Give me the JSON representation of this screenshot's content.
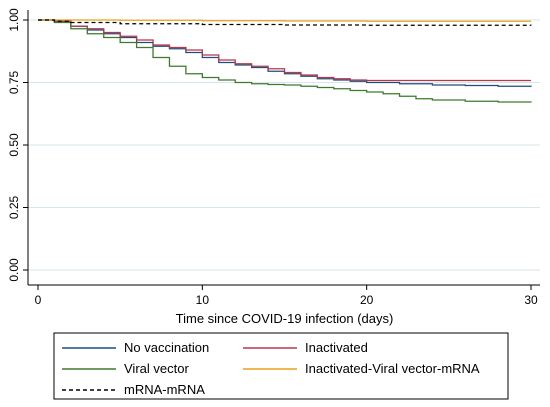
{
  "chart_data": {
    "type": "line",
    "step": true,
    "title": "",
    "xlabel": "Time since COVID-19 infection (days)",
    "ylabel": "",
    "xlim": [
      0,
      30
    ],
    "ylim": [
      0,
      1
    ],
    "x_ticks": [
      0,
      10,
      20,
      30
    ],
    "x_tick_labels": [
      "0",
      "10",
      "20",
      "30"
    ],
    "y_ticks": [
      0,
      0.25,
      0.5,
      0.75,
      1
    ],
    "y_tick_labels": [
      "0.00",
      "0.25",
      "0.50",
      "0.75",
      "1.00"
    ],
    "grid": "horizontal",
    "legend_position": "bottom",
    "series": [
      {
        "name": "No vaccination",
        "color": "#1f4e79",
        "dash": "solid",
        "points": [
          [
            0,
            1.0
          ],
          [
            1,
            0.995
          ],
          [
            2,
            0.975
          ],
          [
            3,
            0.96
          ],
          [
            4,
            0.945
          ],
          [
            5,
            0.93
          ],
          [
            6,
            0.91
          ],
          [
            7,
            0.895
          ],
          [
            8,
            0.885
          ],
          [
            9,
            0.87
          ],
          [
            10,
            0.85
          ],
          [
            11,
            0.83
          ],
          [
            12,
            0.82
          ],
          [
            13,
            0.81
          ],
          [
            14,
            0.795
          ],
          [
            15,
            0.785
          ],
          [
            16,
            0.775
          ],
          [
            17,
            0.765
          ],
          [
            18,
            0.76
          ],
          [
            19,
            0.755
          ],
          [
            20,
            0.75
          ],
          [
            22,
            0.745
          ],
          [
            24,
            0.74
          ],
          [
            26,
            0.738
          ],
          [
            28,
            0.735
          ],
          [
            30,
            0.733
          ]
        ]
      },
      {
        "name": "Inactivated",
        "color": "#b5394c",
        "dash": "solid",
        "points": [
          [
            0,
            1.0
          ],
          [
            1,
            0.995
          ],
          [
            2,
            0.975
          ],
          [
            3,
            0.965
          ],
          [
            4,
            0.95
          ],
          [
            5,
            0.935
          ],
          [
            6,
            0.92
          ],
          [
            7,
            0.9
          ],
          [
            8,
            0.89
          ],
          [
            9,
            0.88
          ],
          [
            10,
            0.86
          ],
          [
            11,
            0.84
          ],
          [
            12,
            0.825
          ],
          [
            13,
            0.815
          ],
          [
            14,
            0.805
          ],
          [
            15,
            0.79
          ],
          [
            16,
            0.78
          ],
          [
            17,
            0.77
          ],
          [
            18,
            0.765
          ],
          [
            19,
            0.76
          ],
          [
            20,
            0.758
          ],
          [
            22,
            0.758
          ],
          [
            30,
            0.758
          ]
        ]
      },
      {
        "name": "Viral vector",
        "color": "#3d7a2e",
        "dash": "solid",
        "points": [
          [
            0,
            1.0
          ],
          [
            1,
            0.99
          ],
          [
            2,
            0.965
          ],
          [
            3,
            0.945
          ],
          [
            4,
            0.93
          ],
          [
            5,
            0.91
          ],
          [
            6,
            0.89
          ],
          [
            7,
            0.85
          ],
          [
            8,
            0.815
          ],
          [
            9,
            0.785
          ],
          [
            10,
            0.77
          ],
          [
            11,
            0.76
          ],
          [
            12,
            0.75
          ],
          [
            13,
            0.745
          ],
          [
            14,
            0.742
          ],
          [
            15,
            0.74
          ],
          [
            16,
            0.735
          ],
          [
            17,
            0.73
          ],
          [
            18,
            0.725
          ],
          [
            19,
            0.718
          ],
          [
            20,
            0.712
          ],
          [
            21,
            0.705
          ],
          [
            22,
            0.695
          ],
          [
            23,
            0.685
          ],
          [
            24,
            0.68
          ],
          [
            26,
            0.675
          ],
          [
            28,
            0.672
          ],
          [
            30,
            0.67
          ]
        ]
      },
      {
        "name": "Inactivated-Viral vector-mRNA",
        "color": "#e8a21a",
        "dash": "solid",
        "points": [
          [
            0,
            1.0
          ],
          [
            5,
            0.999
          ],
          [
            10,
            0.997
          ],
          [
            15,
            0.996
          ],
          [
            20,
            0.995
          ],
          [
            25,
            0.995
          ],
          [
            30,
            0.995
          ]
        ]
      },
      {
        "name": "mRNA-mRNA",
        "color": "#000000",
        "dash": "dashed",
        "points": [
          [
            0,
            1.0
          ],
          [
            1,
            0.995
          ],
          [
            2,
            0.99
          ],
          [
            5,
            0.985
          ],
          [
            10,
            0.982
          ],
          [
            15,
            0.98
          ],
          [
            20,
            0.979
          ],
          [
            30,
            0.978
          ]
        ]
      }
    ]
  }
}
